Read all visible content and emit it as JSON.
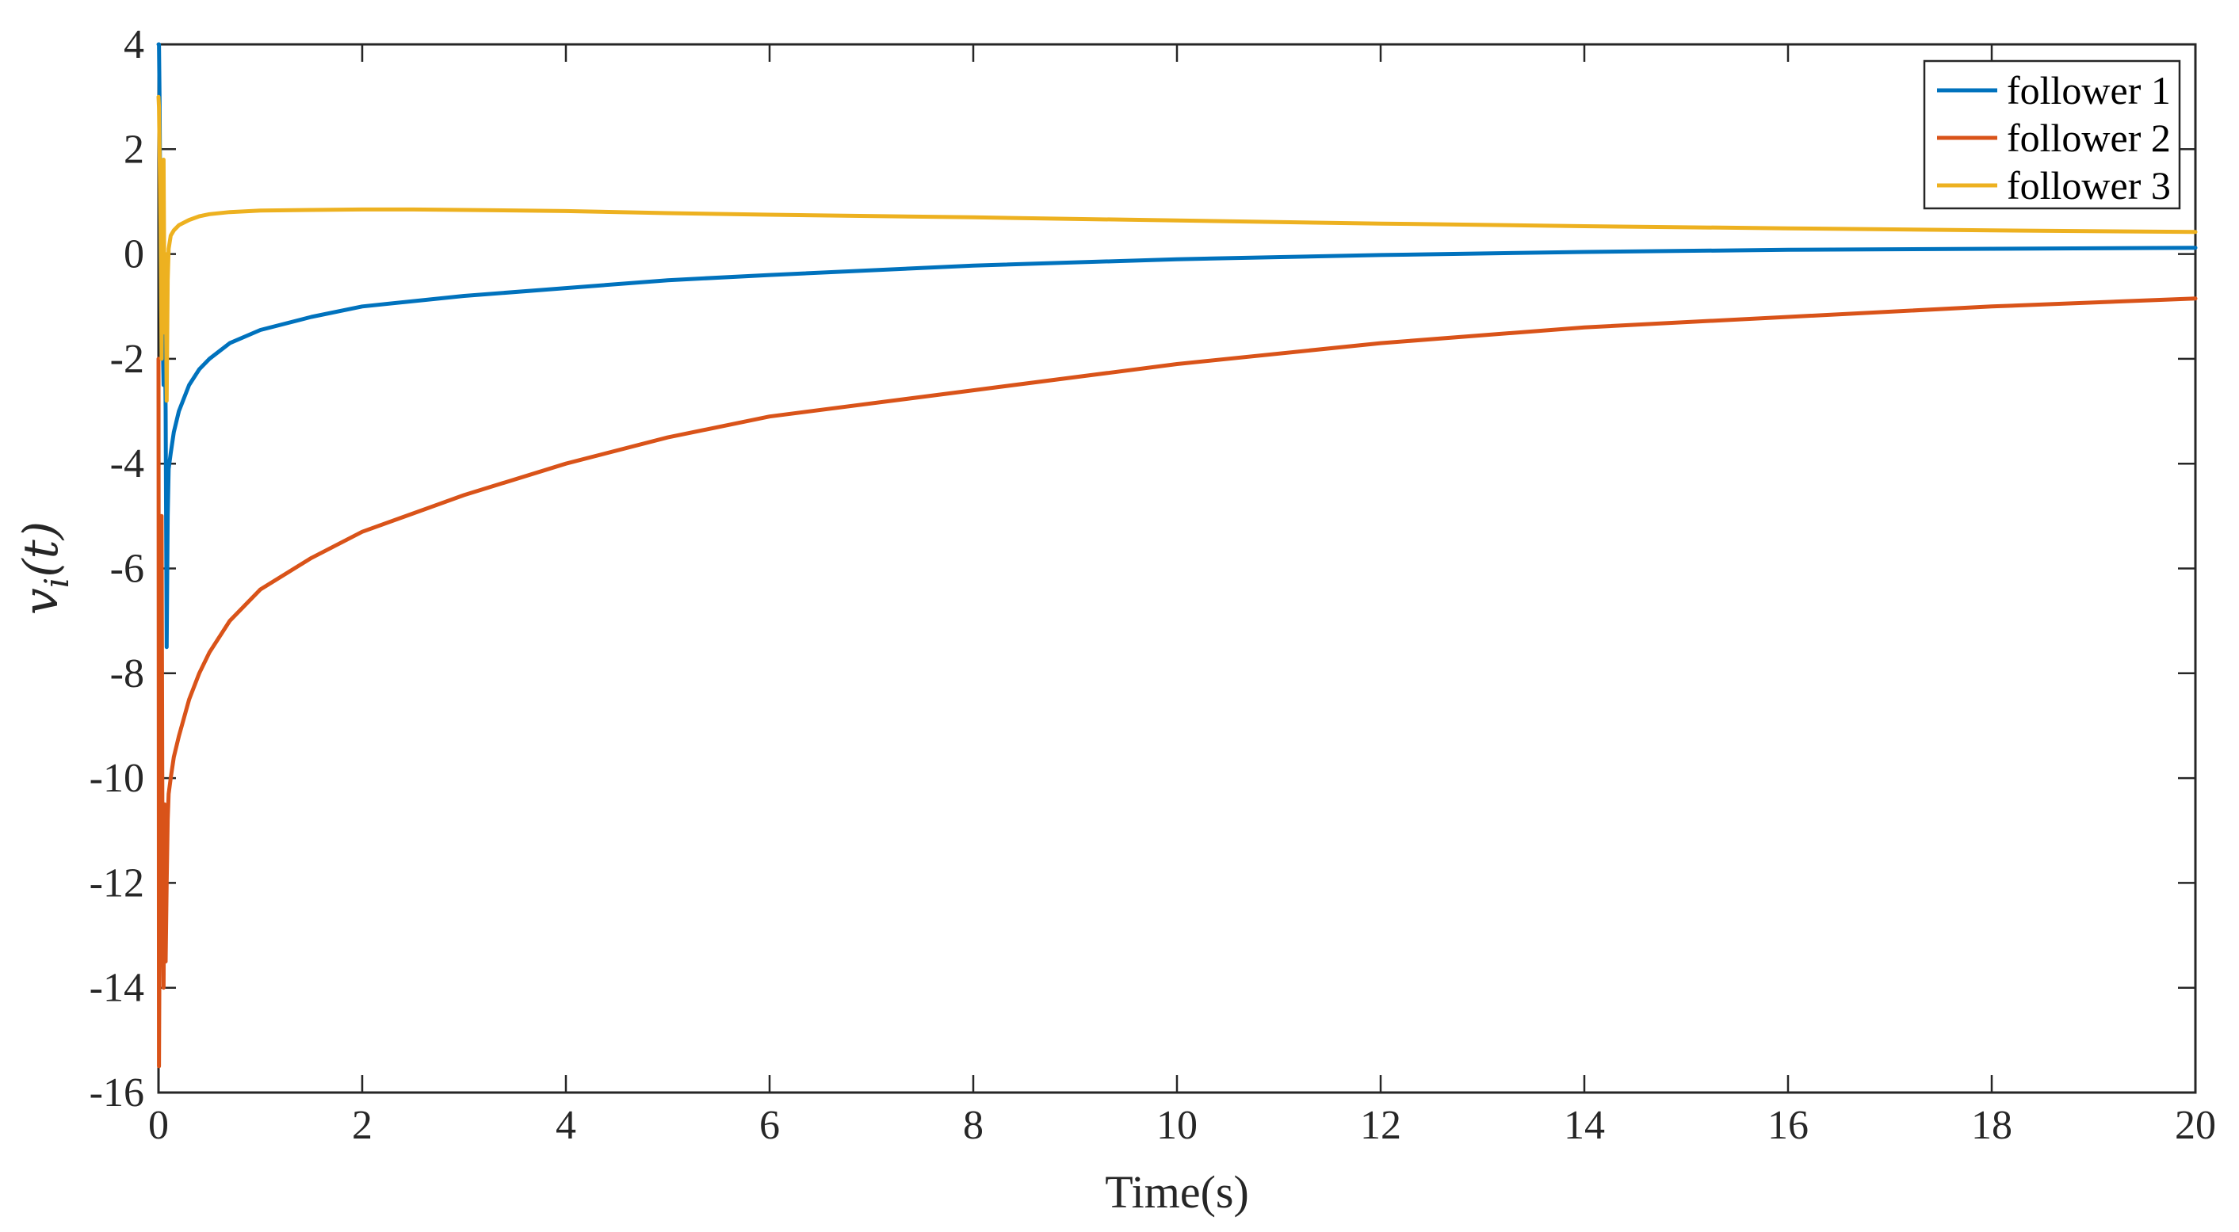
{
  "chart_data": {
    "type": "line",
    "title": "",
    "xlabel": "Time(s)",
    "ylabel": "v_i(t)",
    "xlim": [
      0,
      20
    ],
    "ylim": [
      -16,
      4
    ],
    "xticks": [
      0,
      2,
      4,
      6,
      8,
      10,
      12,
      14,
      16,
      18,
      20
    ],
    "yticks": [
      4,
      2,
      0,
      -2,
      -4,
      -6,
      -8,
      -10,
      -12,
      -14,
      -16
    ],
    "grid": false,
    "legend_position": "top-right",
    "series": [
      {
        "name": "follower 1",
        "color": "#0072BD",
        "x": [
          0,
          0.005,
          0.01,
          0.02,
          0.03,
          0.04,
          0.05,
          0.06,
          0.07,
          0.08,
          0.09,
          0.1,
          0.12,
          0.15,
          0.2,
          0.3,
          0.4,
          0.5,
          0.7,
          1,
          1.5,
          2,
          3,
          4,
          5,
          6,
          8,
          10,
          12,
          14,
          16,
          18,
          20
        ],
        "y": [
          4,
          4,
          3,
          0,
          -2,
          -1.5,
          -2.5,
          -1,
          -3,
          -7.5,
          -5,
          -4.1,
          -3.8,
          -3.4,
          -3.0,
          -2.5,
          -2.2,
          -2.0,
          -1.7,
          -1.45,
          -1.2,
          -1.0,
          -0.8,
          -0.65,
          -0.5,
          -0.4,
          -0.22,
          -0.1,
          -0.02,
          0.04,
          0.08,
          0.1,
          0.12
        ]
      },
      {
        "name": "follower 2",
        "color": "#D95319",
        "x": [
          0,
          0.005,
          0.01,
          0.02,
          0.03,
          0.04,
          0.05,
          0.06,
          0.07,
          0.08,
          0.09,
          0.1,
          0.12,
          0.15,
          0.2,
          0.3,
          0.4,
          0.5,
          0.7,
          1,
          1.5,
          2,
          3,
          4,
          5,
          6,
          8,
          10,
          12,
          14,
          16,
          18,
          20
        ],
        "y": [
          -2,
          -15.5,
          -13,
          -8,
          -5,
          -12,
          -14,
          -10.5,
          -13.5,
          -12,
          -10.8,
          -10.3,
          -10,
          -9.6,
          -9.2,
          -8.5,
          -8.0,
          -7.6,
          -7.0,
          -6.4,
          -5.8,
          -5.3,
          -4.6,
          -4.0,
          -3.5,
          -3.1,
          -2.6,
          -2.1,
          -1.7,
          -1.4,
          -1.2,
          -1.0,
          -0.85
        ]
      },
      {
        "name": "follower 3",
        "color": "#EDB120",
        "x": [
          0,
          0.005,
          0.01,
          0.02,
          0.03,
          0.04,
          0.05,
          0.06,
          0.07,
          0.08,
          0.09,
          0.1,
          0.12,
          0.15,
          0.2,
          0.3,
          0.4,
          0.5,
          0.7,
          1,
          1.5,
          2,
          2.5,
          3,
          4,
          5,
          6,
          8,
          10,
          12,
          14,
          16,
          18,
          20
        ],
        "y": [
          3,
          2.8,
          2,
          0.5,
          -2,
          1.2,
          1.8,
          -1.5,
          0,
          -2.8,
          -0.5,
          0.1,
          0.35,
          0.45,
          0.55,
          0.65,
          0.72,
          0.76,
          0.8,
          0.83,
          0.84,
          0.85,
          0.85,
          0.84,
          0.82,
          0.78,
          0.75,
          0.7,
          0.64,
          0.58,
          0.53,
          0.49,
          0.45,
          0.42
        ]
      }
    ]
  }
}
